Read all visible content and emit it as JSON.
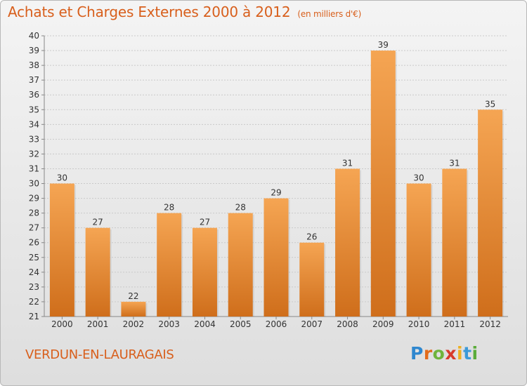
{
  "header": {
    "title": "Achats et Charges Externes 2000 à 2012",
    "subtitle": "(en milliers d'€)"
  },
  "footer": {
    "commune": "VERDUN-EN-LAURAGAIS",
    "logo_text": "Proxiti"
  },
  "colors": {
    "bar_top": "#f5a553",
    "bar_bottom": "#cf6e1b",
    "title": "#d85f1c",
    "logo_letters": [
      "#2f87cf",
      "#e26b1b",
      "#6fb43c",
      "#d83b2b",
      "#f0b020",
      "#3c9ad8",
      "#5aac3a"
    ]
  },
  "chart_data": {
    "type": "bar",
    "title": "Achats et Charges Externes 2000 à 2012",
    "subtitle": "(en milliers d'€)",
    "categories": [
      "2000",
      "2001",
      "2002",
      "2003",
      "2004",
      "2005",
      "2006",
      "2007",
      "2008",
      "2009",
      "2010",
      "2011",
      "2012"
    ],
    "values": [
      30,
      27,
      22,
      28,
      27,
      28,
      29,
      26,
      31,
      39,
      30,
      31,
      35
    ],
    "ylim": [
      21,
      40
    ],
    "yticks": [
      21,
      22,
      23,
      24,
      25,
      26,
      27,
      28,
      29,
      30,
      31,
      32,
      33,
      34,
      35,
      36,
      37,
      38,
      39,
      40
    ],
    "grid": true,
    "data_labels": true
  }
}
